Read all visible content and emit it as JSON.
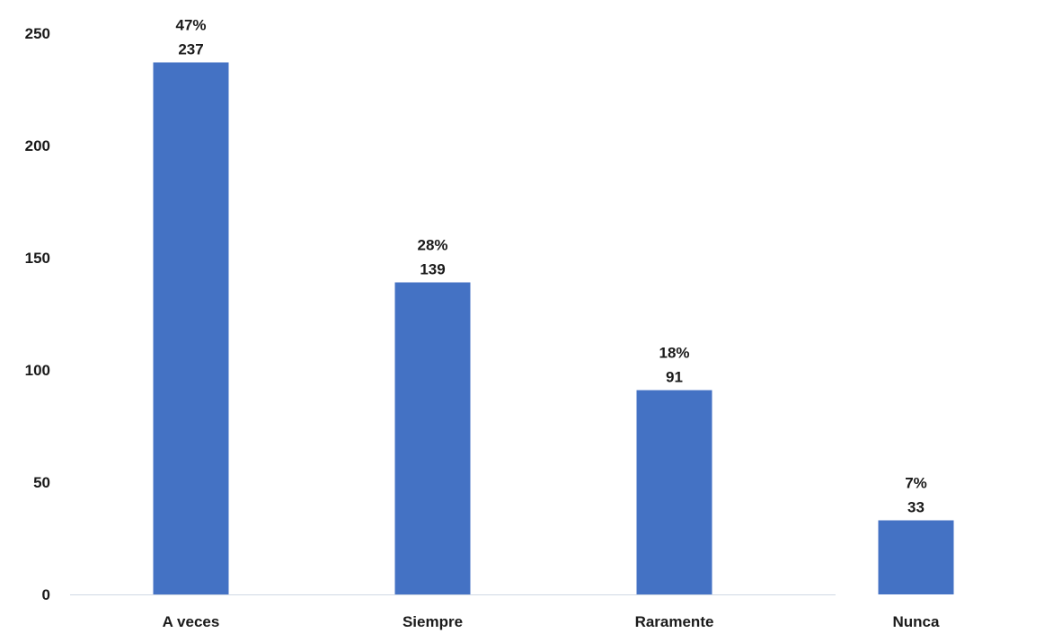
{
  "chart_data": {
    "type": "bar",
    "categories": [
      "A veces",
      "Siempre",
      "Raramente",
      "Nunca"
    ],
    "values": [
      237,
      139,
      91,
      33
    ],
    "percent_labels": [
      "47%",
      "28%",
      "18%",
      "7%"
    ],
    "y_ticks": [
      0,
      50,
      100,
      150,
      200,
      250
    ],
    "ylim": [
      0,
      250
    ],
    "grid": false,
    "legend": "none",
    "bar_color": "#4472C4",
    "baseline_color": "#d0d8e4"
  }
}
